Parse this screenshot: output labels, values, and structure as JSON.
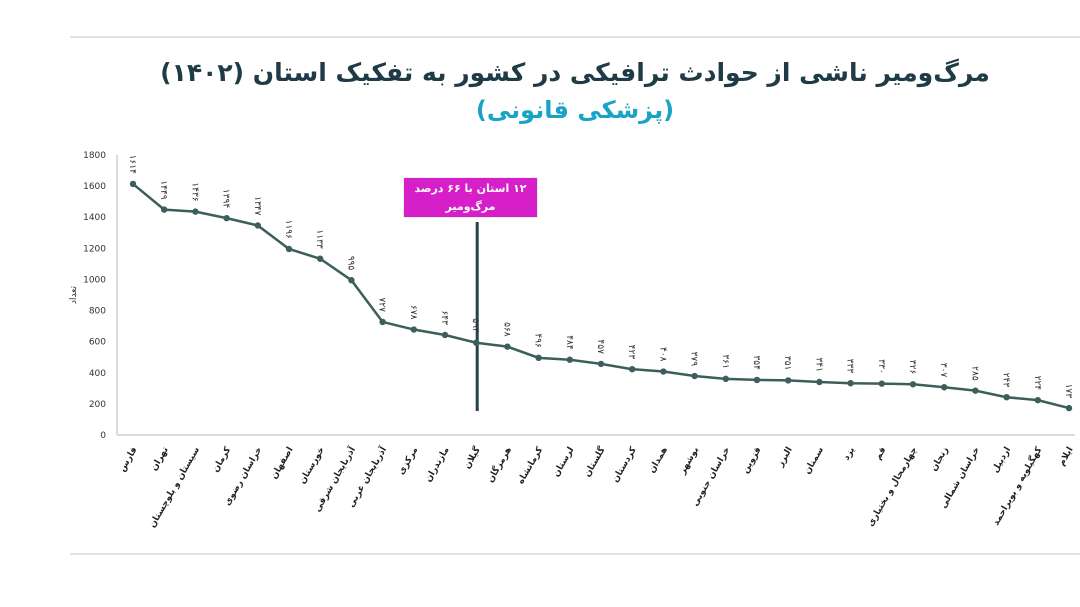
{
  "chart_data": {
    "type": "line",
    "title": "مرگ‌ومیر ناشی از حوادث ترافیکی در کشور به تفکیک استان (۱۴۰۲)",
    "subtitle": "(پزشکی قانونی)",
    "ylabel": "تعداد",
    "xlabel": "",
    "ylim": [
      0,
      1800
    ],
    "yticks": [
      0,
      200,
      400,
      600,
      800,
      1000,
      1200,
      1400,
      1600,
      1800
    ],
    "grid": false,
    "categories": [
      "فارس",
      "تهران",
      "سیستان و بلوچستان",
      "کرمان",
      "خراسان رضوی",
      "اصفهان",
      "خوزستان",
      "آذربایجان شرقی",
      "آذربایجان غربی",
      "مرکزی",
      "مازندران",
      "گیلان",
      "هرمزگان",
      "کرمانشاه",
      "لرستان",
      "گلستان",
      "کردستان",
      "همدان",
      "بوشهر",
      "خراسان جنوبی",
      "قزوین",
      "البرز",
      "سمنان",
      "یزد",
      "قم",
      "چهارمحال و بختیاری",
      "زنجان",
      "خراسان شمالی",
      "اردبیل",
      "کهگیلویه و بویراحمد",
      "ایلام"
    ],
    "values": [
      1614,
      1449,
      1436,
      1394,
      1347,
      1196,
      1133,
      995,
      727,
      678,
      643,
      593,
      568,
      496,
      484,
      457,
      423,
      408,
      379,
      361,
      354,
      351,
      341,
      333,
      330,
      326,
      307,
      285,
      243,
      224,
      173
    ],
    "data_labels": [
      "۱۶۱۴",
      "۱۴۴۹",
      "۱۴۳۶",
      "۱۳۹۴",
      "۱۳۴۷",
      "۱۱۹۶",
      "۱۱۳۳",
      "۹۹۵",
      "۷۲۷",
      "۶۷۸",
      "۶۴۳",
      "۵۹۳",
      "۵۶۸",
      "۴۹۶",
      "۴۸۴",
      "۴۵۷",
      "۴۲۳",
      "۴۰۸",
      "۳۷۹",
      "۳۶۱",
      "۳۵۴",
      "۳۵۱",
      "۳۴۱",
      "۳۳۳",
      "۳۳۰",
      "۳۲۶",
      "۳۰۷",
      "۲۸۵",
      "۲۴۳",
      "۲۲۴",
      "۱۷۳"
    ],
    "line_color": "#3d5f5c",
    "annotation": {
      "text_line1": "۱۲ استان با ۶۶ درصد",
      "text_line2": "مرگ‌ومیر",
      "after_category": "گیلان",
      "color": "#d61fc8",
      "divider_color": "#24434a"
    }
  }
}
